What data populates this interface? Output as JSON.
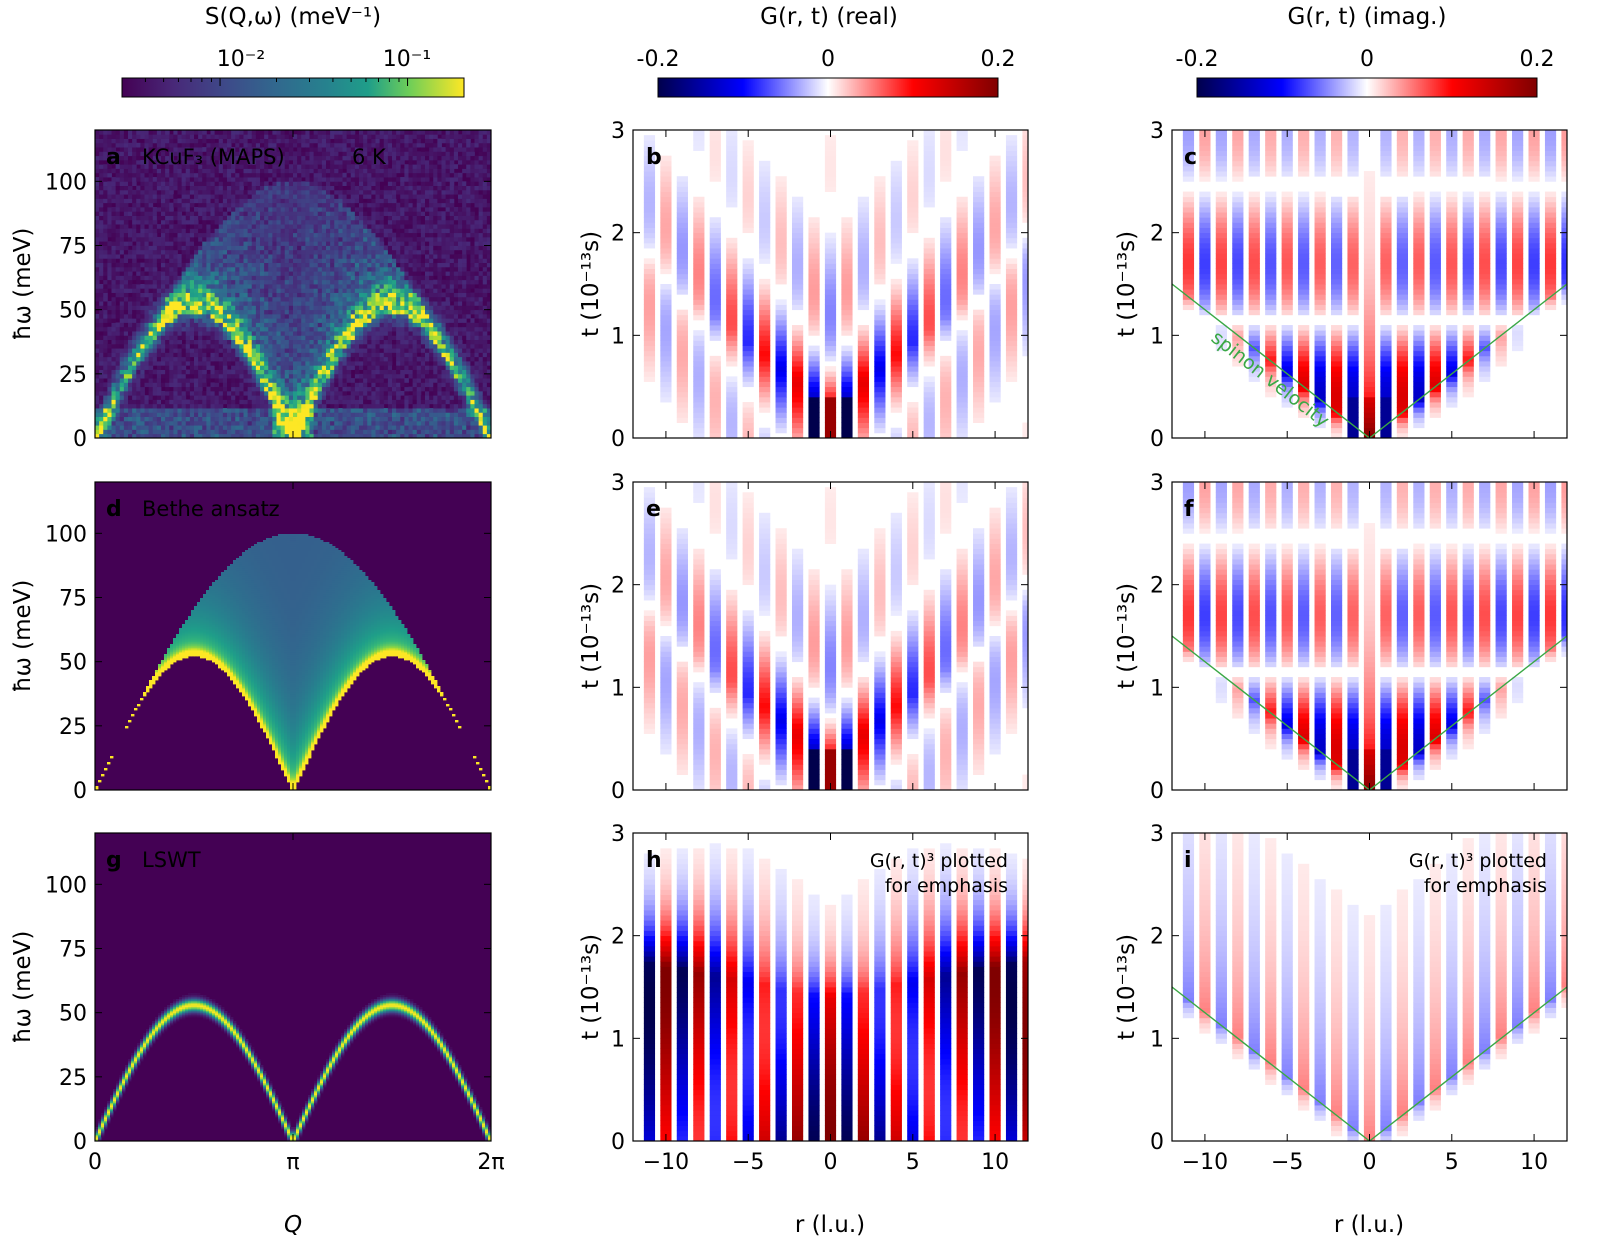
{
  "colors": {
    "viridis_dark": "#440154",
    "viridis_mid": "#21918c",
    "viridis_yellow": "#fde725",
    "seismic_neg": "#00004c",
    "seismic_pos": "#800000",
    "spinon_line": "#3aa845"
  },
  "colorbars": {
    "s_title": "S(Q,ω) (meV⁻¹)",
    "s_tick1": "10⁻²",
    "s_tick2": "10⁻¹",
    "real_title": "G(r, t) (real)",
    "imag_title": "G(r, t) (imag.)",
    "g_tick_neg": "-0.2",
    "g_tick_zero": "0",
    "g_tick_pos": "0.2"
  },
  "panels": {
    "a": {
      "letter": "a",
      "label": "KCuF₃ (MAPS)",
      "extra": "6 K"
    },
    "b": {
      "letter": "b"
    },
    "c": {
      "letter": "c",
      "annotation": "spinon velocity"
    },
    "d": {
      "letter": "d",
      "label": "Bethe ansatz"
    },
    "e": {
      "letter": "e"
    },
    "f": {
      "letter": "f"
    },
    "g": {
      "letter": "g",
      "label": "LSWT"
    },
    "h": {
      "letter": "h",
      "note1": "G(r, t)³ plotted",
      "note2": "for emphasis"
    },
    "i": {
      "letter": "i",
      "note1": "G(r, t)³ plotted",
      "note2": "for emphasis"
    }
  },
  "axes": {
    "hw_label": "ħω (meV)",
    "t_label": "t (10⁻¹³s)",
    "q_label": "Q",
    "r_label": "r (l.u.)",
    "q_ticks": [
      "0",
      "π",
      "2π"
    ],
    "hw_ticks": [
      "0",
      "25",
      "50",
      "75",
      "100"
    ],
    "t_ticks": [
      "0",
      "1",
      "2",
      "3"
    ],
    "r_ticks": [
      "−10",
      "−5",
      "0",
      "5",
      "10"
    ]
  },
  "chart_data": [
    {
      "panel": "a",
      "type": "heatmap",
      "title": "KCuF₃ (MAPS) 6 K",
      "xlabel": "Q",
      "ylabel": "ħω (meV)",
      "xlim": [
        0,
        6.2832
      ],
      "ylim": [
        0,
        120
      ],
      "color_scale": "log",
      "color_range": [
        0.003,
        0.2
      ],
      "dispersion_peak_meV": 53,
      "continuum_top_meV": 100
    },
    {
      "panel": "d",
      "type": "heatmap",
      "title": "Bethe ansatz",
      "xlabel": "Q",
      "ylabel": "ħω (meV)",
      "xlim": [
        0,
        6.2832
      ],
      "ylim": [
        0,
        120
      ],
      "lower_boundary_peak_meV": 53,
      "upper_boundary_peak_meV": 100
    },
    {
      "panel": "g",
      "type": "heatmap",
      "title": "LSWT",
      "xlabel": "Q",
      "ylabel": "ħω (meV)",
      "xlim": [
        0,
        6.2832
      ],
      "ylim": [
        0,
        120
      ],
      "magnon_peak_meV": 53
    },
    {
      "panel": "b",
      "type": "heatmap",
      "quantity": "G(r,t) real",
      "xlabel": "r (l.u.)",
      "ylabel": "t (10⁻¹³s)",
      "xlim": [
        -12,
        12
      ],
      "ylim": [
        0,
        3
      ],
      "color_range": [
        -0.2,
        0.2
      ]
    },
    {
      "panel": "c",
      "type": "heatmap",
      "quantity": "G(r,t) imag.",
      "xlabel": "r (l.u.)",
      "ylabel": "t (10⁻¹³s)",
      "xlim": [
        -12,
        12
      ],
      "ylim": [
        0,
        3
      ],
      "color_range": [
        -0.2,
        0.2
      ],
      "lightcone": {
        "label": "spinon velocity",
        "points": [
          [
            -12,
            1.5
          ],
          [
            0,
            0
          ],
          [
            12,
            1.5
          ]
        ]
      }
    },
    {
      "panel": "e",
      "type": "heatmap",
      "quantity": "G(r,t) real",
      "xlim": [
        -12,
        12
      ],
      "ylim": [
        0,
        3
      ],
      "color_range": [
        -0.2,
        0.2
      ]
    },
    {
      "panel": "f",
      "type": "heatmap",
      "quantity": "G(r,t) imag.",
      "xlim": [
        -12,
        12
      ],
      "ylim": [
        0,
        3
      ],
      "color_range": [
        -0.2,
        0.2
      ],
      "lightcone": {
        "points": [
          [
            -12,
            1.5
          ],
          [
            0,
            0
          ],
          [
            12,
            1.5
          ]
        ]
      }
    },
    {
      "panel": "h",
      "type": "heatmap",
      "quantity": "G(r,t)³ real",
      "xlim": [
        -12,
        12
      ],
      "ylim": [
        0,
        3
      ],
      "color_range": [
        -0.2,
        0.2
      ]
    },
    {
      "panel": "i",
      "type": "heatmap",
      "quantity": "G(r,t)³ imag.",
      "xlim": [
        -12,
        12
      ],
      "ylim": [
        0,
        3
      ],
      "color_range": [
        -0.2,
        0.2
      ],
      "lightcone": {
        "points": [
          [
            -12,
            1.5
          ],
          [
            0,
            0
          ],
          [
            12,
            1.5
          ]
        ]
      }
    }
  ]
}
